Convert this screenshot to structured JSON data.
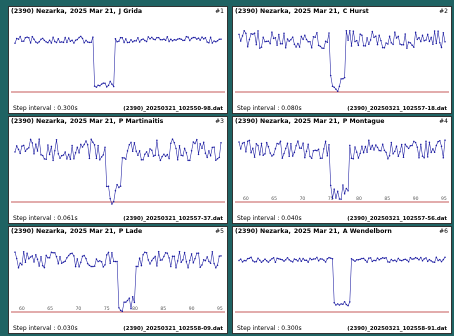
{
  "panels": [
    {
      "object": "(2390) Nezarka,",
      "date": "2025 Mar 21,",
      "observer": "J Grida",
      "index": "#1",
      "step": "Step interval : 0.300s",
      "file": "(2390)_20250321_102550-98.dat",
      "ticks": [
        "",
        "",
        "",
        "",
        "",
        ""
      ],
      "event": [
        0.38,
        0.48
      ],
      "noise": 0.05,
      "color": "#1a1aa0"
    },
    {
      "object": "(2390) Nezarka,",
      "date": "2025 Mar 21,",
      "observer": "C Hurst",
      "index": "#2",
      "step": "Step interval : 0.080s",
      "file": "(2390)_20250321_102557-18.dat",
      "ticks": [
        "",
        "",
        "",
        "",
        "",
        ""
      ],
      "event": [
        0.44,
        0.52
      ],
      "noise": 0.13,
      "color": "#1a1aa0"
    },
    {
      "object": "(2390) Nezarka,",
      "date": "2025 Mar 21,",
      "observer": "P Martinaitis",
      "index": "#3",
      "step": "Step interval : 0.061s",
      "file": "(2390)_20250321_102557-37.dat",
      "ticks": [
        "",
        "",
        "",
        "",
        "",
        ""
      ],
      "event": [
        0.44,
        0.52
      ],
      "noise": 0.16,
      "color": "#1a1aa0"
    },
    {
      "object": "(2390) Nezarka,",
      "date": "2025 Mar 21,",
      "observer": "P Montague",
      "index": "#4",
      "step": "Step interval : 0.040s",
      "file": "(2390)_20250321_102557-56.dat",
      "ticks": [
        "60",
        "65",
        "70",
        "75",
        "80",
        "85",
        "90",
        "95"
      ],
      "event": [
        0.44,
        0.53
      ],
      "noise": 0.14,
      "color": "#1a1aa0"
    },
    {
      "object": "(2390) Nezarka,",
      "date": "2025 Mar 21,",
      "observer": "P Lade",
      "index": "#5",
      "step": "Step interval : 0.030s",
      "file": "(2390)_20250321_102558-09.dat",
      "ticks": [
        "60",
        "65",
        "70",
        "75",
        "80",
        "85",
        "90",
        "95"
      ],
      "event": [
        0.5,
        0.58
      ],
      "noise": 0.12,
      "color": "#1a1aa0"
    },
    {
      "object": "(2390) Nezarka,",
      "date": "2025 Mar 21,",
      "observer": "A Wendelborn",
      "index": "#6",
      "step": "Step interval : 0.300s",
      "file": "(2390)_20250321_102558-91.dat",
      "ticks": [
        "",
        "",
        "",
        "",
        "",
        ""
      ],
      "event": [
        0.46,
        0.54
      ],
      "noise": 0.04,
      "color": "#1a1aa0"
    }
  ],
  "chart_data": [
    {
      "type": "line",
      "title": "(2390) Nezarka, 2025 Mar 21, J Grida",
      "series": [
        {
          "values": [
            1,
            1,
            1,
            1,
            1,
            0.05,
            0.05,
            1,
            1,
            1,
            1
          ]
        }
      ]
    },
    {
      "type": "line",
      "title": "(2390) Nezarka, 2025 Mar 21, C Hurst",
      "series": [
        {
          "values": [
            1,
            1,
            1,
            1,
            1,
            0.05,
            0.05,
            1,
            1,
            1,
            1
          ]
        }
      ]
    },
    {
      "type": "line",
      "title": "(2390) Nezarka, 2025 Mar 21, P Martinaitis",
      "series": [
        {
          "values": [
            1,
            1,
            1,
            1,
            1,
            0.05,
            0.05,
            1,
            1,
            1,
            1
          ]
        }
      ]
    },
    {
      "type": "line",
      "title": "(2390) Nezarka, 2025 Mar 21, P Montague",
      "series": [
        {
          "values": [
            1,
            1,
            1,
            1,
            1,
            0.05,
            0.05,
            1,
            1,
            1,
            1
          ]
        }
      ]
    },
    {
      "type": "line",
      "title": "(2390) Nezarka, 2025 Mar 21, P Lade",
      "series": [
        {
          "values": [
            1,
            1,
            1,
            1,
            1,
            0.05,
            0.05,
            1,
            1,
            1,
            1
          ]
        }
      ]
    },
    {
      "type": "line",
      "title": "(2390) Nezarka, 2025 Mar 21, A Wendelborn",
      "series": [
        {
          "values": [
            1,
            1,
            1,
            1,
            1,
            0.05,
            0.05,
            1,
            1,
            1,
            1
          ]
        }
      ]
    }
  ]
}
